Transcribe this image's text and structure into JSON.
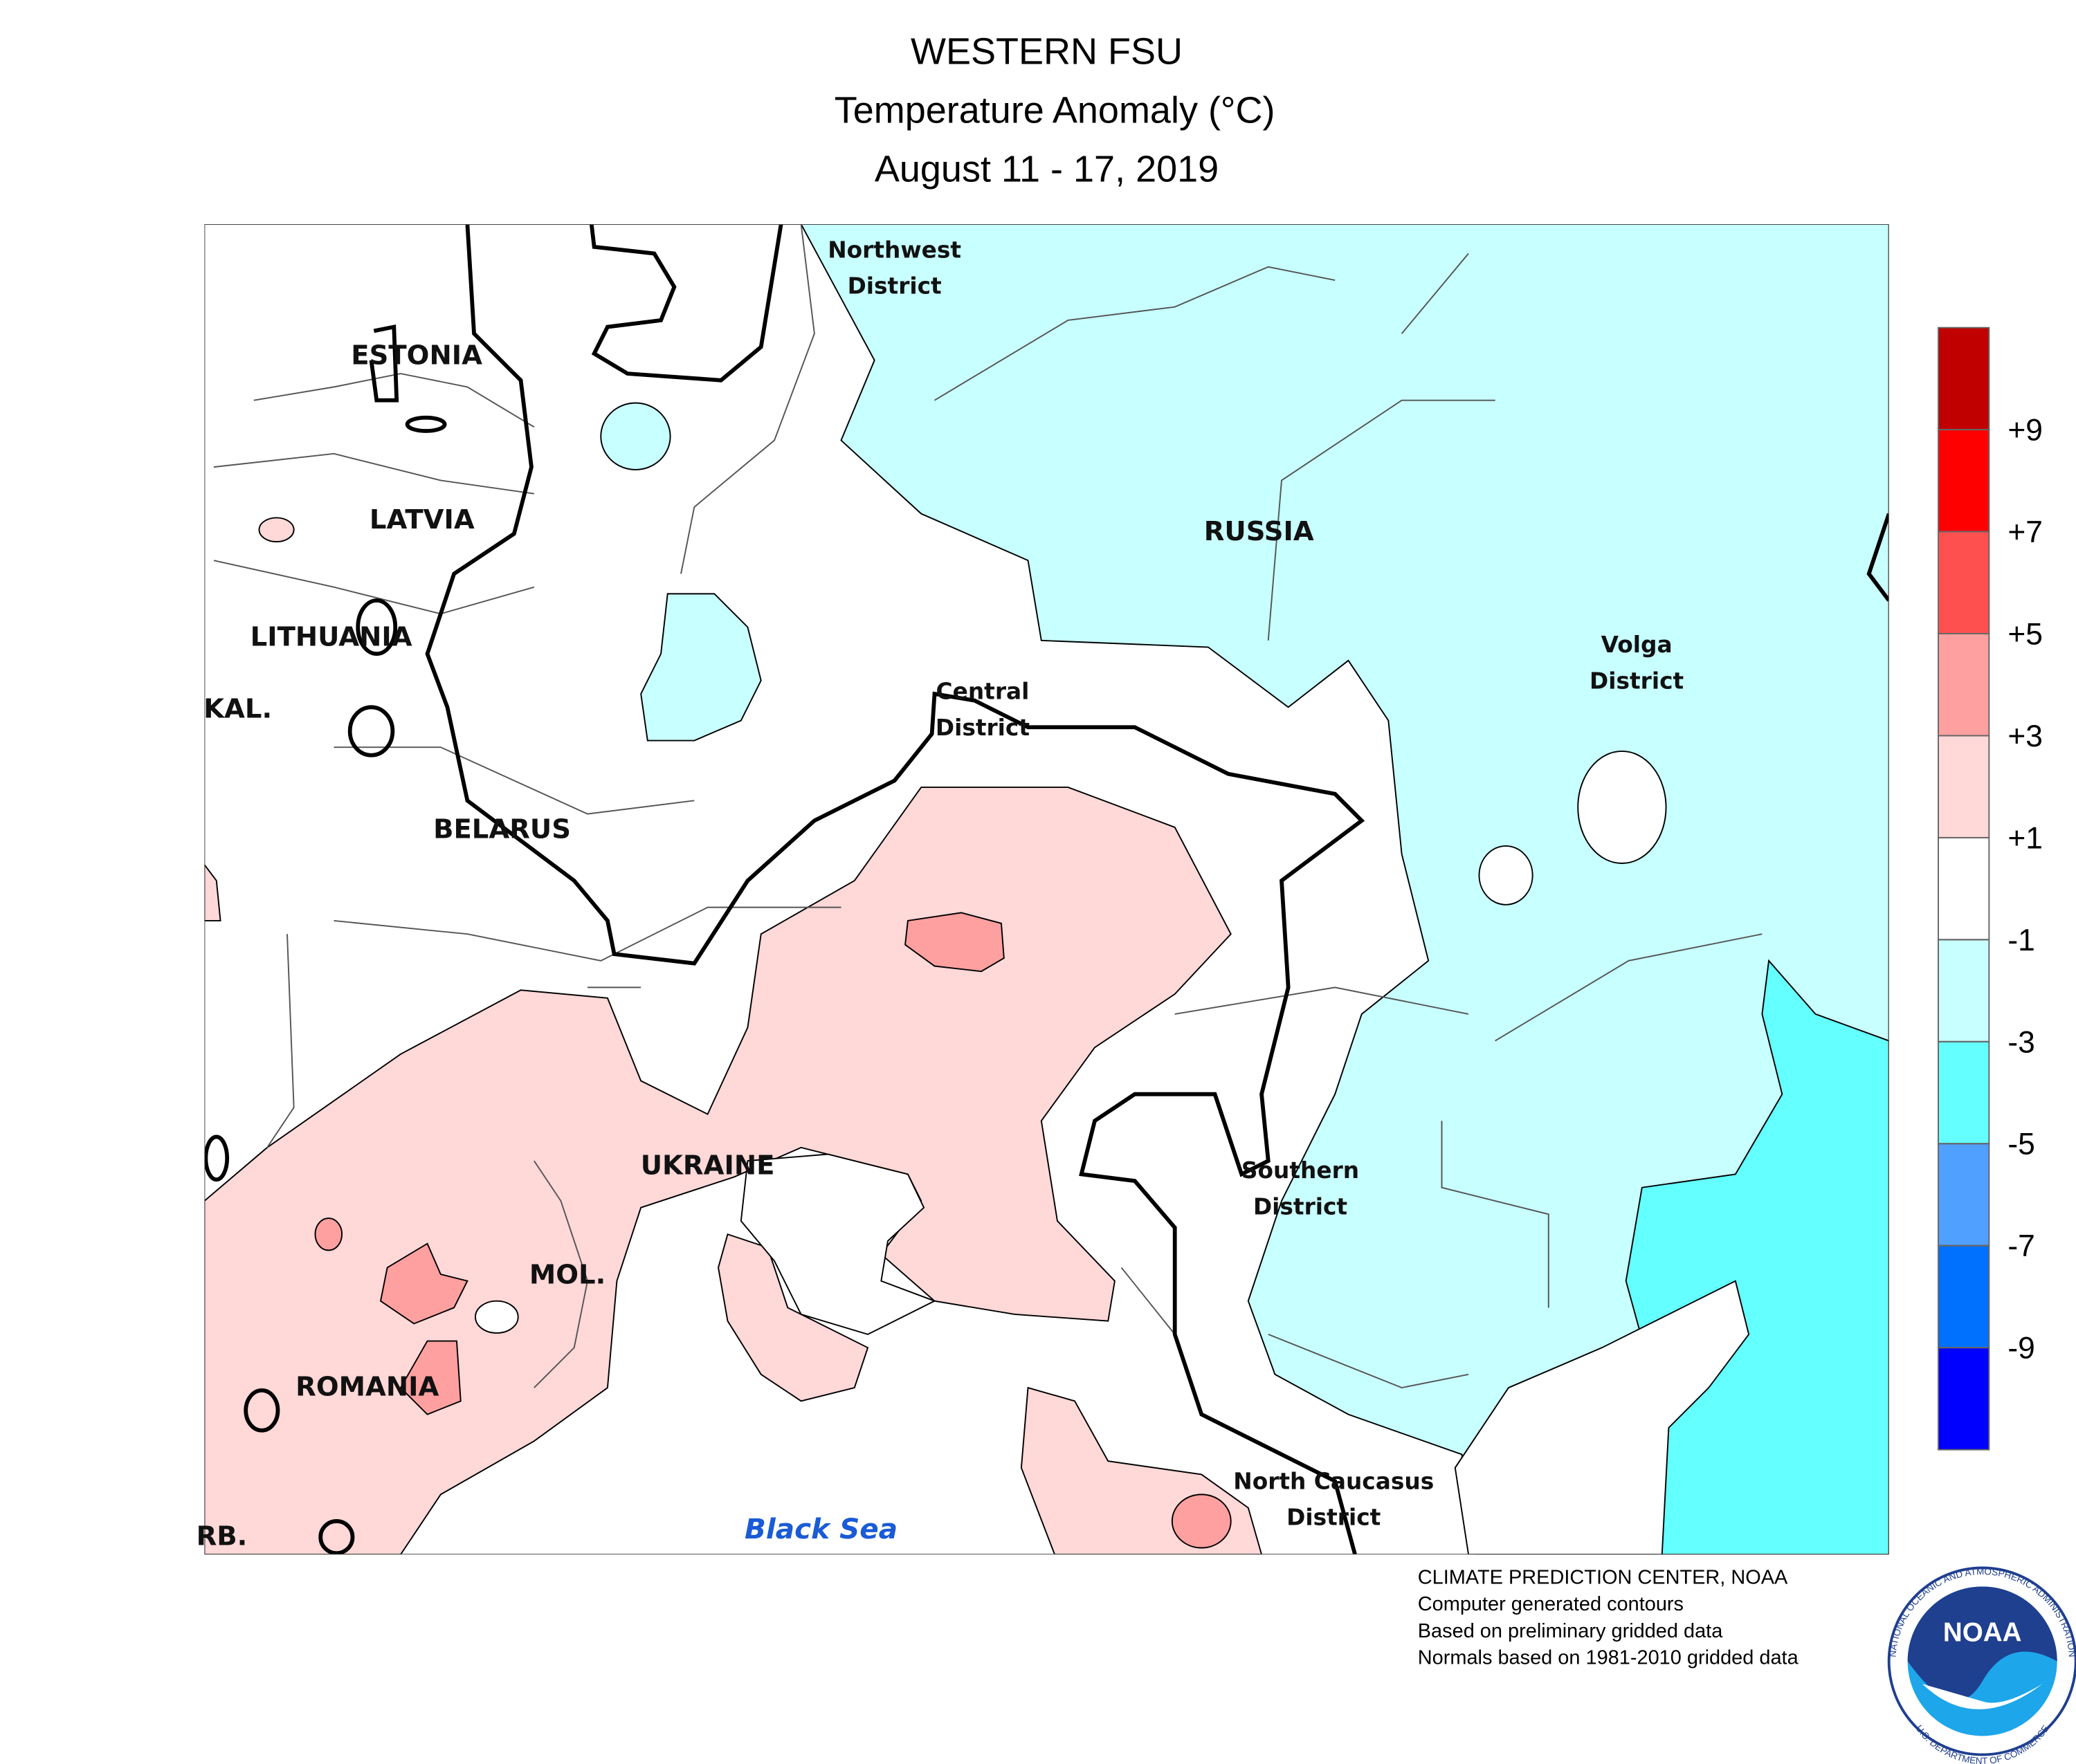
{
  "header": {
    "title": "WESTERN FSU",
    "subtitle": "Temperature Anomaly (°C)",
    "period": "August 11 - 17, 2019"
  },
  "labels": {
    "countries": [
      "ESTONIA",
      "LATVIA",
      "LITHUANIA",
      "KAL.",
      "BELARUS",
      "UKRAINE",
      "MOL.",
      "ROMANIA",
      "RB.",
      "RUSSIA"
    ],
    "districts": [
      [
        "Northwest",
        "District"
      ],
      [
        "Central",
        "District"
      ],
      [
        "Volga",
        "District"
      ],
      [
        "Southern",
        "District"
      ],
      [
        "North Caucasus",
        "District"
      ]
    ],
    "sea": "Black Sea"
  },
  "legend": {
    "colors": [
      "#c00000",
      "#ff0000",
      "#ff5050",
      "#ffa0a0",
      "#ffd8d8",
      "#ffffff",
      "#c8ffff",
      "#64ffff",
      "#50a0ff",
      "#0070ff",
      "#0000ff"
    ],
    "ticks": [
      {
        "value": 9,
        "label": "+9"
      },
      {
        "value": 7,
        "label": "+7"
      },
      {
        "value": 5,
        "label": "+5"
      },
      {
        "value": 3,
        "label": "+3"
      },
      {
        "value": 1,
        "label": "+1"
      },
      -1,
      -3,
      -5,
      -7,
      -9
    ]
  },
  "footer": [
    "CLIMATE PREDICTION CENTER, NOAA",
    "Computer generated contours",
    "Based on preliminary gridded data",
    "Normals based on 1981-2010 gridded data"
  ],
  "logo": {
    "text": "NOAA",
    "ring_top": "NATIONAL OCEANIC AND ATMOSPHERIC ADMINISTRATION",
    "ring_bottom": "U.S. DEPARTMENT OF COMMERCE"
  }
}
